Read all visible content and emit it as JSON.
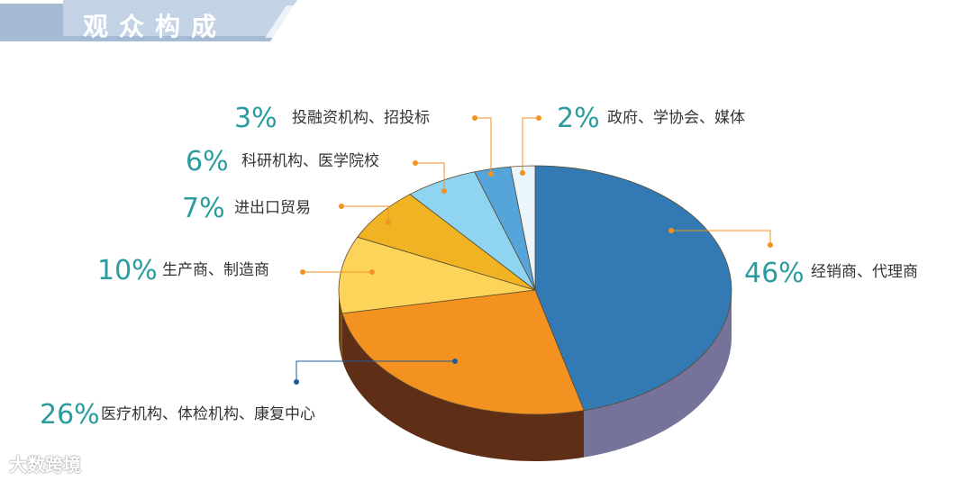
{
  "header": {
    "title": "观众构成"
  },
  "watermark": "大数跨境",
  "chart_data": {
    "type": "pie",
    "title": "观众构成",
    "slices": [
      {
        "label": "经销商、代理商",
        "percent": "46%",
        "value": 46,
        "color": "#3379B3",
        "side_color": "#757399"
      },
      {
        "label": "医疗机构、体检机构、康复中心",
        "percent": "26%",
        "value": 26,
        "color": "#F39221",
        "side_color": "#5E2F16"
      },
      {
        "label": "生产商、制造商",
        "percent": "10%",
        "value": 10,
        "color": "#FCD45A",
        "side_color": "#6E4A1C"
      },
      {
        "label": "进出口贸易",
        "percent": "7%",
        "value": 7,
        "color": "#F0B323",
        "side_color": "#6E4A1C"
      },
      {
        "label": "科研机构、医学院校",
        "percent": "6%",
        "value": 6,
        "color": "#8FD5F2",
        "side_color": "#5E6E80"
      },
      {
        "label": "投融资机构、招投标",
        "percent": "3%",
        "value": 3,
        "color": "#55A4DA",
        "side_color": "#4E6A8A"
      },
      {
        "label": "政府、学协会、媒体",
        "percent": "2%",
        "value": 2,
        "color": "#EAF6FC",
        "side_color": "#8A96A6"
      }
    ],
    "percent_color": "#2A9C9E",
    "label_color": "#333333",
    "leader_color": "#F39221",
    "leader_color_alt": "#1E5C99"
  }
}
